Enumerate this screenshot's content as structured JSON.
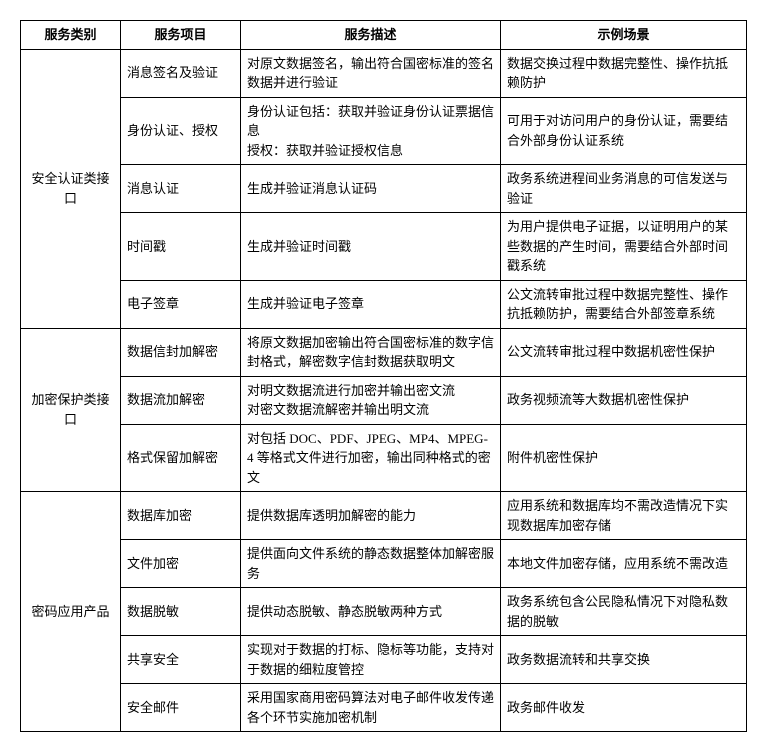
{
  "headers": {
    "category": "服务类别",
    "project": "服务项目",
    "description": "服务描述",
    "scenario": "示例场景"
  },
  "groups": [
    {
      "category": "安全认证类接口",
      "rows": [
        {
          "project": "消息签名及验证",
          "description": "对原文数据签名，输出符合国密标准的签名数据并进行验证",
          "scenario": "数据交换过程中数据完整性、操作抗抵赖防护"
        },
        {
          "project": "身份认证、授权",
          "description": "身份认证包括：获取并验证身份认证票据信息\n授权：获取并验证授权信息",
          "scenario": "可用于对访问用户的身份认证，需要结合外部身份认证系统"
        },
        {
          "project": "消息认证",
          "description": "生成并验证消息认证码",
          "scenario": "政务系统进程间业务消息的可信发送与验证"
        },
        {
          "project": "时间戳",
          "description": "生成并验证时间戳",
          "scenario": "为用户提供电子证据，以证明用户的某些数据的产生时间，需要结合外部时间戳系统"
        },
        {
          "project": "电子签章",
          "description": "生成并验证电子签章",
          "scenario": "公文流转审批过程中数据完整性、操作抗抵赖防护，需要结合外部签章系统"
        }
      ]
    },
    {
      "category": "加密保护类接口",
      "rows": [
        {
          "project": "数据信封加解密",
          "description": "将原文数据加密输出符合国密标准的数字信封格式，解密数字信封数据获取明文",
          "scenario": "公文流转审批过程中数据机密性保护"
        },
        {
          "project": "数据流加解密",
          "description": "对明文数据流进行加密并输出密文流\n对密文数据流解密并输出明文流",
          "scenario": "政务视频流等大数据机密性保护"
        },
        {
          "project": "格式保留加解密",
          "description": "对包括 DOC、PDF、JPEG、MP4、MPEG-4 等格式文件进行加密，输出同种格式的密文",
          "scenario": "附件机密性保护"
        }
      ]
    },
    {
      "category": "密码应用产品",
      "rows": [
        {
          "project": "数据库加密",
          "description": "提供数据库透明加解密的能力",
          "scenario": "应用系统和数据库均不需改造情况下实现数据库加密存储"
        },
        {
          "project": "文件加密",
          "description": "提供面向文件系统的静态数据整体加解密服务",
          "scenario": "本地文件加密存储，应用系统不需改造"
        },
        {
          "project": "数据脱敏",
          "description": "提供动态脱敏、静态脱敏两种方式",
          "scenario": "政务系统包含公民隐私情况下对隐私数据的脱敏"
        },
        {
          "project": "共享安全",
          "description": "实现对于数据的打标、隐标等功能，支持对于数据的细粒度管控",
          "scenario": "政务数据流转和共享交换"
        },
        {
          "project": "安全邮件",
          "description": "采用国家商用密码算法对电子邮件收发传递各个环节实施加密机制",
          "scenario": "政务邮件收发"
        }
      ]
    }
  ]
}
